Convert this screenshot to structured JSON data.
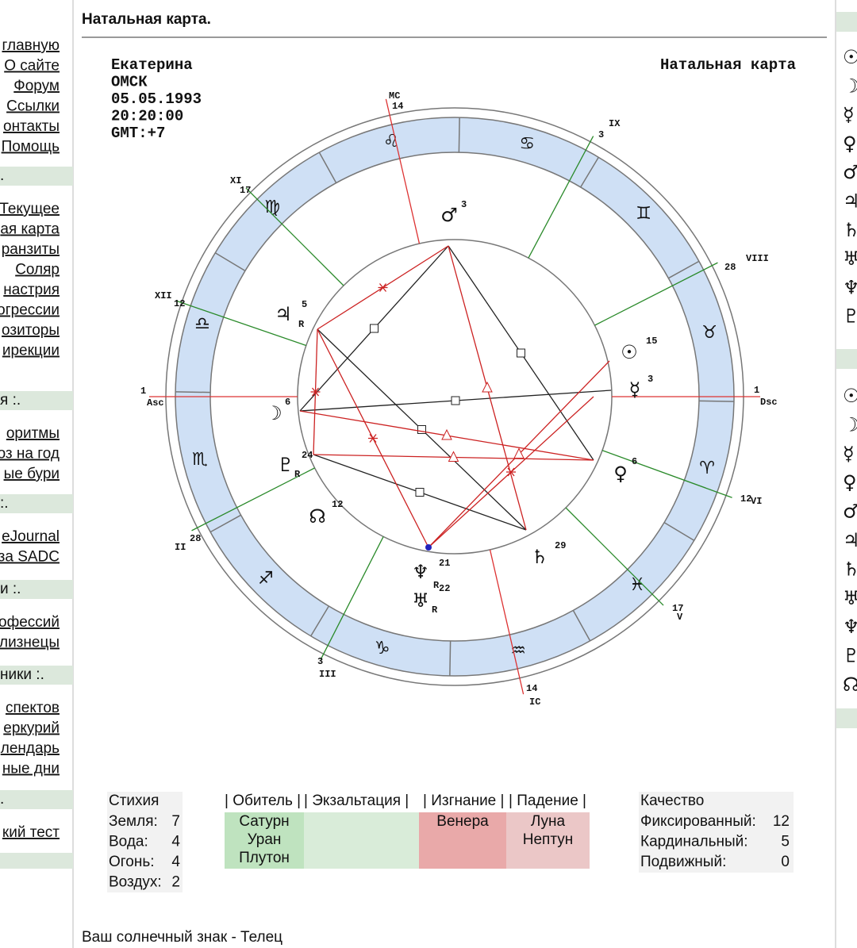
{
  "sidebar": {
    "top_links": [
      "главную",
      "О сайте",
      "Форум",
      "Ссылки",
      "онтакты",
      "Помощь"
    ],
    "sections": [
      {
        "title": ".",
        "links": [
          "Текущее",
          "ая карта",
          "ранзиты",
          "Соляр",
          "настрия",
          "огрессии",
          "озиторы",
          "ирекции"
        ]
      },
      {
        "title": "я :.",
        "links": [
          "оритмы",
          "оз на год",
          "ые бури"
        ]
      },
      {
        "title": ":.",
        "links": [
          "eJournal",
          "за SADC"
        ]
      },
      {
        "title": "и :.",
        "links": [
          "офессий",
          "лизнецы"
        ]
      },
      {
        "title": "ники :.",
        "links": [
          "спектов",
          "еркурий",
          "лендарь",
          "ные дни"
        ]
      },
      {
        "title": ".",
        "links": [
          "кий тест"
        ]
      }
    ]
  },
  "header": {
    "title": "Натальная карта."
  },
  "chart": {
    "person": [
      "Екатерина",
      "ОМСК",
      "05.05.1993",
      "20:20:00",
      "GMT:+7"
    ],
    "caption": "Натальная карта",
    "zodiac": [
      "♈",
      "♉",
      "♊",
      "♋",
      "♌",
      "♍",
      "♎",
      "♏",
      "♐",
      "♑",
      "♒",
      "♓"
    ],
    "houses": [
      {
        "name": "MC",
        "degree": "14"
      },
      {
        "name": "IX",
        "degree": "3"
      },
      {
        "name": "VIII",
        "degree": "28"
      },
      {
        "name": "Dsc",
        "degree": "1"
      },
      {
        "name": "VI",
        "degree": "12"
      },
      {
        "name": "V",
        "degree": "17"
      },
      {
        "name": "IC",
        "degree": "14"
      },
      {
        "name": "III",
        "degree": "3"
      },
      {
        "name": "II",
        "degree": "28"
      },
      {
        "name": "Asc",
        "degree": "1"
      },
      {
        "name": "XII",
        "degree": "12"
      },
      {
        "name": "XI",
        "degree": "17"
      }
    ],
    "planets": [
      {
        "glyph": "♂",
        "degree": "3"
      },
      {
        "glyph": "♃",
        "degree": "5",
        "motion": "R"
      },
      {
        "glyph": "☉",
        "degree": "15"
      },
      {
        "glyph": "☿",
        "degree": "3"
      },
      {
        "glyph": "☽",
        "degree": "6"
      },
      {
        "glyph": "♇",
        "degree": "24",
        "motion": "R"
      },
      {
        "glyph": "♀",
        "degree": "6"
      },
      {
        "glyph": "☊",
        "degree": "12"
      },
      {
        "glyph": "♄",
        "degree": "29"
      },
      {
        "glyph": "♆",
        "degree": "21",
        "motion": "R"
      },
      {
        "glyph": "♅",
        "degree": "22",
        "motion": "R"
      }
    ]
  },
  "elements": {
    "title": "Стихия",
    "rows": [
      {
        "label": "Земля:",
        "value": 7
      },
      {
        "label": "Вода:",
        "value": 4
      },
      {
        "label": "Огонь:",
        "value": 4
      },
      {
        "label": "Воздух:",
        "value": 2
      }
    ]
  },
  "dignities": [
    {
      "header": "| Обитель |",
      "planets": [
        "Сатурн",
        "Уран",
        "Плутон"
      ]
    },
    {
      "header": "| Экзальтация |",
      "planets": []
    },
    {
      "header": "| Изгнание |",
      "planets": [
        "Венера"
      ]
    },
    {
      "header": "| Падение |",
      "planets": [
        "Луна",
        "Нептун"
      ]
    }
  ],
  "quality": {
    "title": "Качество",
    "rows": [
      {
        "label": "Фиксированный:",
        "value": 12
      },
      {
        "label": "Кардинальный:",
        "value": 5
      },
      {
        "label": "Подвижный:",
        "value": 0
      }
    ]
  },
  "footer": {
    "sun_sign": "Ваш солнечный знак - Телец"
  },
  "right_panel": {
    "groups": [
      [
        "☉",
        "☽",
        "☿",
        "♀",
        "♂",
        "♃",
        "♄",
        "♅",
        "♆",
        "♇"
      ],
      [
        "☉",
        "☽",
        "☿",
        "♀",
        "♂",
        "♃",
        "♄",
        "♅",
        "♆",
        "♇",
        "☊"
      ]
    ]
  }
}
